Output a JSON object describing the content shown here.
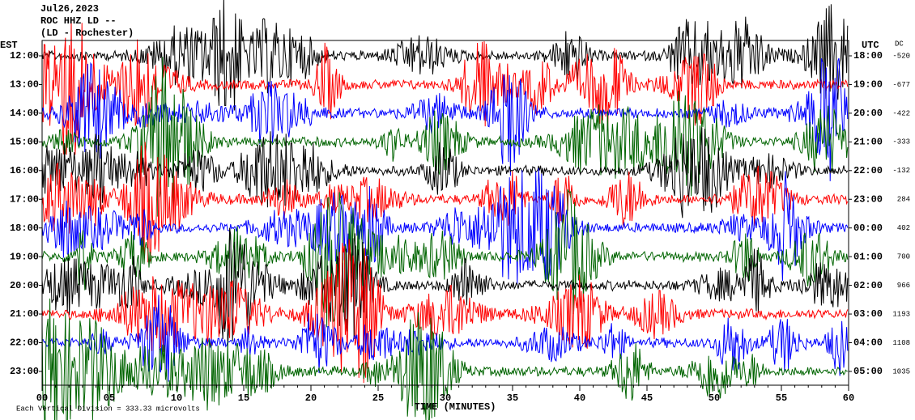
{
  "chart_data": {
    "type": "helicorder",
    "title": "Jul26,2023",
    "subtitle": "ROC HHZ LD --",
    "station": "(LD - Rochester)",
    "left_axis_label": "EST",
    "right_axis_label": "UTC",
    "dc_label": "DC",
    "xlabel": "TIME (MINUTES)",
    "footnote": "Each Vertical Division = 333.33 microvolts",
    "xlim": [
      0,
      60
    ],
    "xticks": [
      {
        "value": 0,
        "label": "00"
      },
      {
        "value": 5,
        "label": "05"
      },
      10,
      15,
      20,
      25,
      30,
      35,
      40,
      45,
      50,
      55,
      60
    ],
    "rows": [
      {
        "est": "12:00",
        "utc": "18:00",
        "dc": -520,
        "color": "#000000"
      },
      {
        "est": "13:00",
        "utc": "19:00",
        "dc": -677,
        "color": "#ff0000"
      },
      {
        "est": "14:00",
        "utc": "20:00",
        "dc": -422,
        "color": "#0000ff"
      },
      {
        "est": "15:00",
        "utc": "21:00",
        "dc": -333,
        "color": "#006400"
      },
      {
        "est": "16:00",
        "utc": "22:00",
        "dc": -132,
        "color": "#000000"
      },
      {
        "est": "17:00",
        "utc": "23:00",
        "dc": 284,
        "color": "#ff0000"
      },
      {
        "est": "18:00",
        "utc": "00:00",
        "dc": 402,
        "color": "#0000ff"
      },
      {
        "est": "19:00",
        "utc": "01:00",
        "dc": 700,
        "color": "#006400"
      },
      {
        "est": "20:00",
        "utc": "02:00",
        "dc": 966,
        "color": "#000000"
      },
      {
        "est": "21:00",
        "utc": "03:00",
        "dc": 1193,
        "color": "#ff0000"
      },
      {
        "est": "22:00",
        "utc": "04:00",
        "dc": 1108,
        "color": "#0000ff"
      },
      {
        "est": "23:00",
        "utc": "05:00",
        "dc": 1035,
        "color": "#006400"
      }
    ]
  }
}
